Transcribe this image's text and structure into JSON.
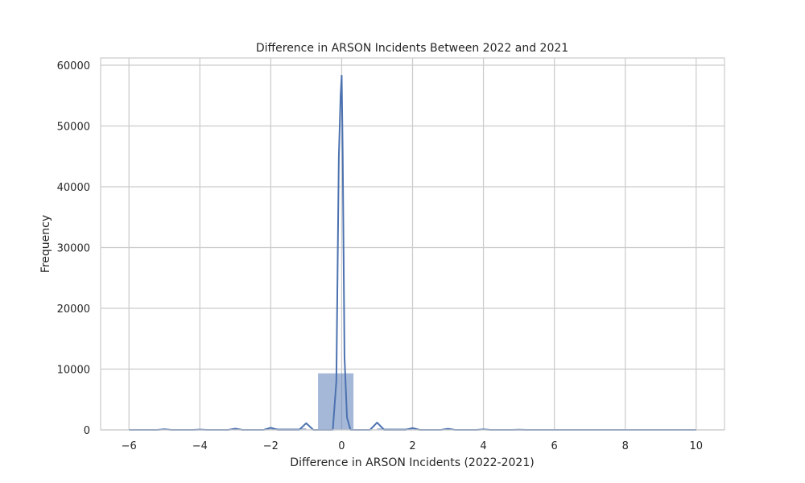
{
  "chart_data": {
    "type": "bar",
    "title": "Difference in ARSON Incidents Between 2022 and 2021",
    "xlabel": "Difference in ARSON Incidents (2022-2021)",
    "ylabel": "Frequency",
    "xlim": [
      -6.8,
      10.8
    ],
    "ylim": [
      0,
      61200
    ],
    "xticks": [
      -6,
      -4,
      -2,
      0,
      2,
      4,
      6,
      8,
      10
    ],
    "xtick_labels": [
      "−6",
      "−4",
      "−2",
      "0",
      "2",
      "4",
      "6",
      "8",
      "10"
    ],
    "yticks": [
      0,
      10000,
      20000,
      30000,
      40000,
      50000,
      60000
    ],
    "ytick_labels": [
      "0",
      "10000",
      "20000",
      "30000",
      "40000",
      "50000",
      "60000"
    ],
    "grid": true,
    "histogram": {
      "bins": [
        {
          "x0": -6.0,
          "x1": -5.0,
          "count": 10
        },
        {
          "x0": -5.0,
          "x1": -4.0,
          "count": 20
        },
        {
          "x0": -4.0,
          "x1": -3.0,
          "count": 40
        },
        {
          "x0": -3.0,
          "x1": -2.0,
          "count": 120
        },
        {
          "x0": -2.0,
          "x1": -1.0,
          "count": 260
        },
        {
          "x0": -0.667,
          "x1": 0.333,
          "count": 9300
        },
        {
          "x0": 1.0,
          "x1": 2.0,
          "count": 250
        },
        {
          "x0": 2.0,
          "x1": 3.0,
          "count": 100
        },
        {
          "x0": 3.0,
          "x1": 4.0,
          "count": 40
        },
        {
          "x0": 4.0,
          "x1": 5.0,
          "count": 30
        },
        {
          "x0": 5.0,
          "x1": 6.0,
          "count": 15
        },
        {
          "x0": 6.0,
          "x1": 7.0,
          "count": 10
        },
        {
          "x0": 7.0,
          "x1": 8.0,
          "count": 5
        },
        {
          "x0": 8.0,
          "x1": 9.0,
          "count": 5
        },
        {
          "x0": 9.0,
          "x1": 10.0,
          "count": 5
        }
      ]
    },
    "kde": {
      "x": [
        -6.0,
        -5.2,
        -5.0,
        -4.8,
        -4.2,
        -4.0,
        -3.8,
        -3.2,
        -3.0,
        -2.8,
        -2.2,
        -2.0,
        -1.8,
        -1.2,
        -1.0,
        -0.8,
        -0.25,
        -0.15,
        -0.08,
        -0.03,
        0.0,
        0.03,
        0.08,
        0.15,
        0.25,
        0.8,
        1.0,
        1.2,
        1.8,
        2.0,
        2.2,
        2.8,
        3.0,
        3.2,
        3.8,
        4.0,
        4.2,
        4.8,
        5.0,
        5.2,
        6.0,
        7.0,
        8.0,
        9.0,
        10.0
      ],
      "y": [
        0,
        0,
        100,
        0,
        0,
        50,
        0,
        0,
        200,
        0,
        0,
        350,
        0,
        0,
        1100,
        0,
        0,
        8000,
        45000,
        55000,
        58300,
        45000,
        12000,
        2000,
        0,
        0,
        1200,
        0,
        0,
        300,
        0,
        0,
        180,
        0,
        0,
        80,
        0,
        0,
        40,
        0,
        0,
        0,
        0,
        0,
        0
      ]
    },
    "colors": {
      "bar": "#4c72b0",
      "line": "#4c72b0",
      "grid": "#cccccc",
      "axis": "#cccccc"
    }
  }
}
